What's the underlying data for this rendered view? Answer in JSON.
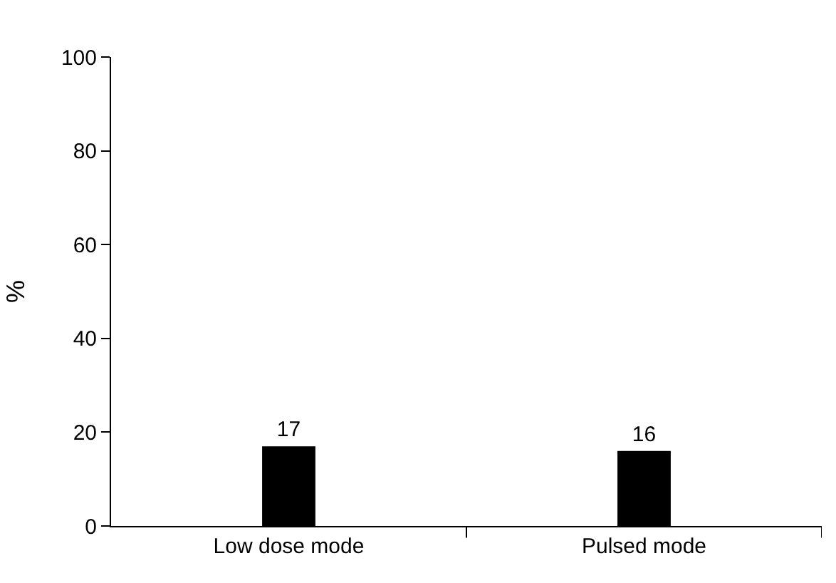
{
  "chart_data": {
    "type": "bar",
    "ylabel": "%",
    "categories": [
      "Low dose mode",
      "Pulsed mode"
    ],
    "values": [
      17,
      16
    ],
    "color": "#000000",
    "ylim": [
      0,
      100
    ],
    "yticks": [
      0,
      20,
      40,
      60,
      80,
      100
    ],
    "data_labels": true
  }
}
